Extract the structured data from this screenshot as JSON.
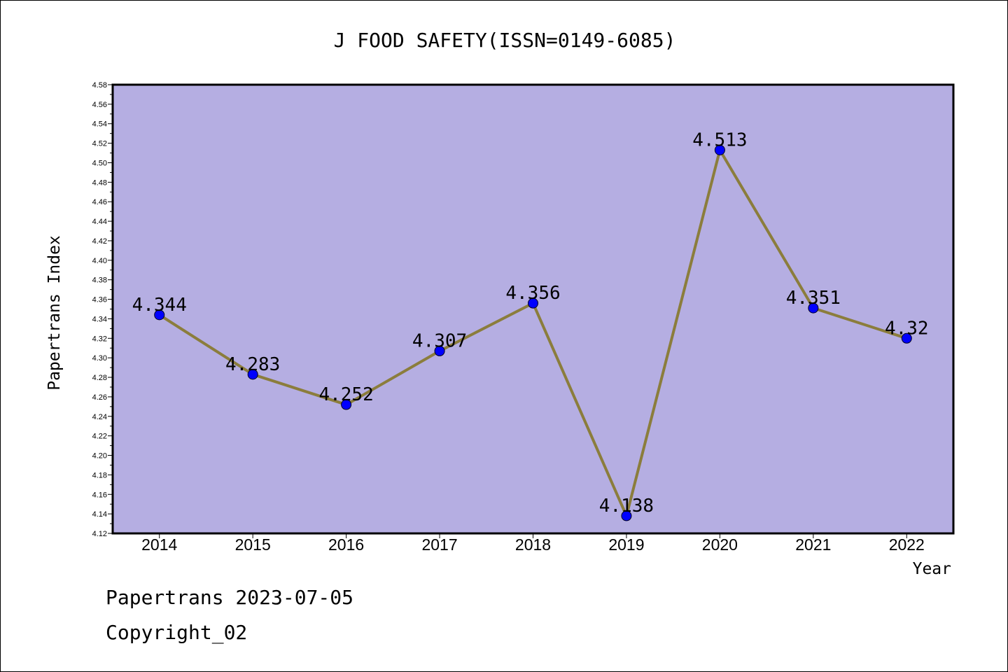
{
  "chart_data": {
    "type": "line",
    "title": "J FOOD SAFETY(ISSN=0149-6085)",
    "xlabel": "Year",
    "ylabel": "Papertrans Index",
    "categories": [
      "2014",
      "2015",
      "2016",
      "2017",
      "2018",
      "2019",
      "2020",
      "2021",
      "2022"
    ],
    "series": [
      {
        "values": [
          4.344,
          4.283,
          4.252,
          4.307,
          4.356,
          4.138,
          4.513,
          4.351,
          4.32
        ]
      }
    ],
    "data_labels": [
      "4.344",
      "4.283",
      "4.252",
      "4.307",
      "4.356",
      "4.138",
      "4.513",
      "4.351",
      "4.32"
    ],
    "ylim": [
      4.12,
      4.58
    ],
    "yticks": [
      "4.12",
      "4.14",
      "4.16",
      "4.18",
      "4.20",
      "4.22",
      "4.24",
      "4.26",
      "4.28",
      "4.30",
      "4.32",
      "4.34",
      "4.36",
      "4.38",
      "4.40",
      "4.42",
      "4.44",
      "4.46",
      "4.48",
      "4.50",
      "4.52",
      "4.54",
      "4.56",
      "4.58"
    ],
    "grid": false,
    "colors": {
      "plot_background": "#b5aee2",
      "line": "#8b7d3c",
      "marker": "#0000ff"
    }
  },
  "footer": {
    "line1": "Papertrans 2023-07-05",
    "line2": "Copyright_02"
  }
}
